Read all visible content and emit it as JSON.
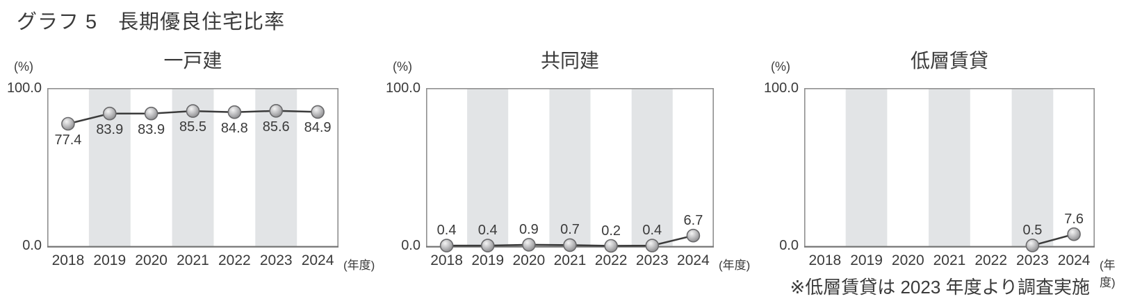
{
  "page_title": "グラフ 5　長期優良住宅比率",
  "footnote": "※低層賃貸は 2023 年度より調査実施",
  "axis": {
    "unit_label": "(%)",
    "y_max_label": "100.0",
    "y_min_label": "0.0",
    "x_axis_suffix": "(年度)"
  },
  "colors": {
    "text": "#3a3a3a",
    "band": "#e2e4e6",
    "plot_border": "#8f8f8f",
    "axis_line": "#767676",
    "line": "#3b3b3b",
    "marker_stroke": "#69696b",
    "marker_fill_light": "#f4f4f4",
    "marker_fill_mid": "#c2c2c4",
    "marker_fill_dark": "#838385"
  },
  "chart_data": [
    {
      "type": "line",
      "title": "一戸建",
      "categories": [
        "2018",
        "2019",
        "2020",
        "2021",
        "2022",
        "2023",
        "2024"
      ],
      "values": [
        77.4,
        83.9,
        83.9,
        85.5,
        84.8,
        85.6,
        84.9
      ],
      "ylabel": "(%)",
      "ylim": [
        0,
        100
      ],
      "y_tick_labels": [
        "0.0",
        "100.0"
      ],
      "shaded_categories": [
        "2019",
        "2021",
        "2023"
      ],
      "label_position": "below",
      "grid": "off",
      "legend": "none"
    },
    {
      "type": "line",
      "title": "共同建",
      "categories": [
        "2018",
        "2019",
        "2020",
        "2021",
        "2022",
        "2023",
        "2024"
      ],
      "values": [
        0.4,
        0.4,
        0.9,
        0.7,
        0.2,
        0.4,
        6.7
      ],
      "ylabel": "(%)",
      "ylim": [
        0,
        100
      ],
      "y_tick_labels": [
        "0.0",
        "100.0"
      ],
      "shaded_categories": [
        "2019",
        "2021",
        "2023"
      ],
      "label_position": "above",
      "grid": "off",
      "legend": "none"
    },
    {
      "type": "line",
      "title": "低層賃貸",
      "categories": [
        "2018",
        "2019",
        "2020",
        "2021",
        "2022",
        "2023",
        "2024"
      ],
      "values": [
        null,
        null,
        null,
        null,
        null,
        0.5,
        7.6
      ],
      "ylabel": "(%)",
      "ylim": [
        0,
        100
      ],
      "y_tick_labels": [
        "0.0",
        "100.0"
      ],
      "shaded_categories": [
        "2019",
        "2021",
        "2023"
      ],
      "label_position": "above",
      "grid": "off",
      "legend": "none"
    }
  ]
}
